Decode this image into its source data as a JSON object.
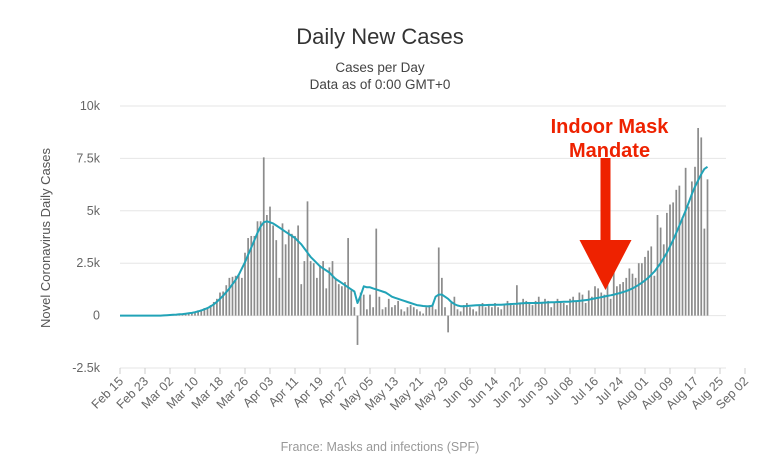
{
  "chart_data": {
    "type": "bar",
    "title": "Daily New Cases",
    "subtitle": [
      "Cases per Day",
      "Data as of 0:00 GMT+0"
    ],
    "ylabel": "Novel Coronavirus Daily Cases",
    "xlabel": "",
    "ylim": [
      -2500,
      10000
    ],
    "yticks": [
      -2500,
      0,
      2500,
      5000,
      7500,
      10000
    ],
    "ytick_labels": [
      "-2.5k",
      "0",
      "2.5k",
      "5k",
      "7.5k",
      "10k"
    ],
    "xtick_labels": [
      "Feb 15",
      "Feb 23",
      "Mar 02",
      "Mar 10",
      "Mar 18",
      "Mar 26",
      "Apr 03",
      "Apr 11",
      "Apr 19",
      "Apr 27",
      "May 05",
      "May 13",
      "May 21",
      "May 29",
      "Jun 06",
      "Jun 14",
      "Jun 22",
      "Jun 30",
      "Jul 08",
      "Jul 16",
      "Jul 24",
      "Aug 01",
      "Aug 09",
      "Aug 17",
      "Aug 25",
      "Sep 02"
    ],
    "x_start": "Feb 15",
    "grid": true,
    "annotation": {
      "text": [
        "Indoor Mask",
        "Mandate"
      ],
      "target": "Jul 20",
      "color": "#ee2200"
    },
    "series": [
      {
        "kind": "bar",
        "color": "#8c8c8c",
        "values": [
          0,
          0,
          0,
          0,
          0,
          0,
          0,
          0,
          0,
          0,
          0,
          0,
          0,
          0,
          5,
          15,
          20,
          35,
          40,
          60,
          60,
          90,
          110,
          120,
          190,
          250,
          290,
          360,
          380,
          500,
          650,
          800,
          1100,
          1150,
          1450,
          1800,
          1850,
          1900,
          1980,
          1800,
          3000,
          3700,
          3800,
          3800,
          4500,
          4500,
          7550,
          4800,
          5200,
          4300,
          3600,
          1800,
          4400,
          3400,
          4100,
          3900,
          3800,
          4300,
          1500,
          2600,
          5450,
          2600,
          2500,
          1800,
          2400,
          2600,
          1300,
          2300,
          2600,
          1800,
          1500,
          1400,
          1600,
          3700,
          1200,
          400,
          -1400,
          1100,
          1000,
          300,
          1000,
          400,
          4150,
          900,
          300,
          400,
          800,
          400,
          500,
          700,
          300,
          200,
          400,
          500,
          400,
          300,
          200,
          100,
          400,
          500,
          500,
          300,
          3250,
          1800,
          400,
          -800,
          600,
          900,
          300,
          200,
          500,
          600,
          400,
          300,
          200,
          500,
          600,
          400,
          500,
          400,
          600,
          400,
          300,
          500,
          700,
          600,
          500,
          1450,
          600,
          800,
          700,
          600,
          500,
          700,
          900,
          600,
          800,
          700,
          400,
          600,
          800,
          700,
          600,
          500,
          800,
          900,
          700,
          1100,
          1000,
          600,
          1200,
          900,
          1400,
          1300,
          1100,
          1000,
          1500,
          800,
          2750,
          1400,
          1500,
          1600,
          1800,
          2250,
          2000,
          1800,
          2500,
          2500,
          2800,
          3100,
          3300,
          1900,
          4800,
          4200,
          3400,
          4900,
          5300,
          5400,
          6000,
          6200,
          4700,
          7050,
          5200,
          6400,
          7100,
          8950,
          8500,
          4150,
          6500
        ]
      },
      {
        "kind": "line",
        "color": "#21a3b7",
        "values": [
          0,
          0,
          0,
          0,
          0,
          0,
          0,
          0,
          0,
          0,
          0,
          0,
          0,
          0,
          10,
          20,
          30,
          40,
          50,
          60,
          70,
          90,
          110,
          130,
          160,
          200,
          250,
          300,
          360,
          440,
          540,
          660,
          800,
          950,
          1120,
          1300,
          1500,
          1700,
          1950,
          2250,
          2550,
          2900,
          3250,
          3600,
          3950,
          4250,
          4450,
          4500,
          4450,
          4400,
          4300,
          4200,
          4100,
          4000,
          3900,
          3800,
          3700,
          3550,
          3400,
          3200,
          3000,
          2800,
          2650,
          2500,
          2350,
          2250,
          2150,
          2050,
          1900,
          1750,
          1650,
          1550,
          1450,
          1350,
          1250,
          1150,
          600,
          950,
          1400,
          1350,
          1350,
          1300,
          1250,
          1200,
          1150,
          1100,
          1000,
          900,
          850,
          800,
          750,
          700,
          650,
          600,
          550,
          500,
          480,
          460,
          450,
          440,
          480,
          900,
          1000,
          1000,
          900,
          800,
          650,
          550,
          480,
          450,
          450,
          460,
          470,
          480,
          490,
          500,
          500,
          500,
          510,
          510,
          520,
          520,
          520,
          530,
          540,
          550,
          560,
          570,
          580,
          590,
          600,
          600,
          600,
          600,
          600,
          610,
          620,
          630,
          640,
          640,
          650,
          650,
          660,
          660,
          670,
          680,
          690,
          700,
          720,
          740,
          760,
          790,
          820,
          850,
          880,
          910,
          940,
          970,
          1000,
          1040,
          1080,
          1120,
          1170,
          1230,
          1300,
          1380,
          1470,
          1570,
          1680,
          1800,
          1950,
          2100,
          2300,
          2500,
          2750,
          3000,
          3300,
          3600,
          3950,
          4300,
          4650,
          5000,
          5400,
          5800,
          6150,
          6450,
          6750,
          7000,
          7100
        ]
      }
    ]
  },
  "footer": {
    "caption": "France: Masks and infections (SPF)"
  }
}
